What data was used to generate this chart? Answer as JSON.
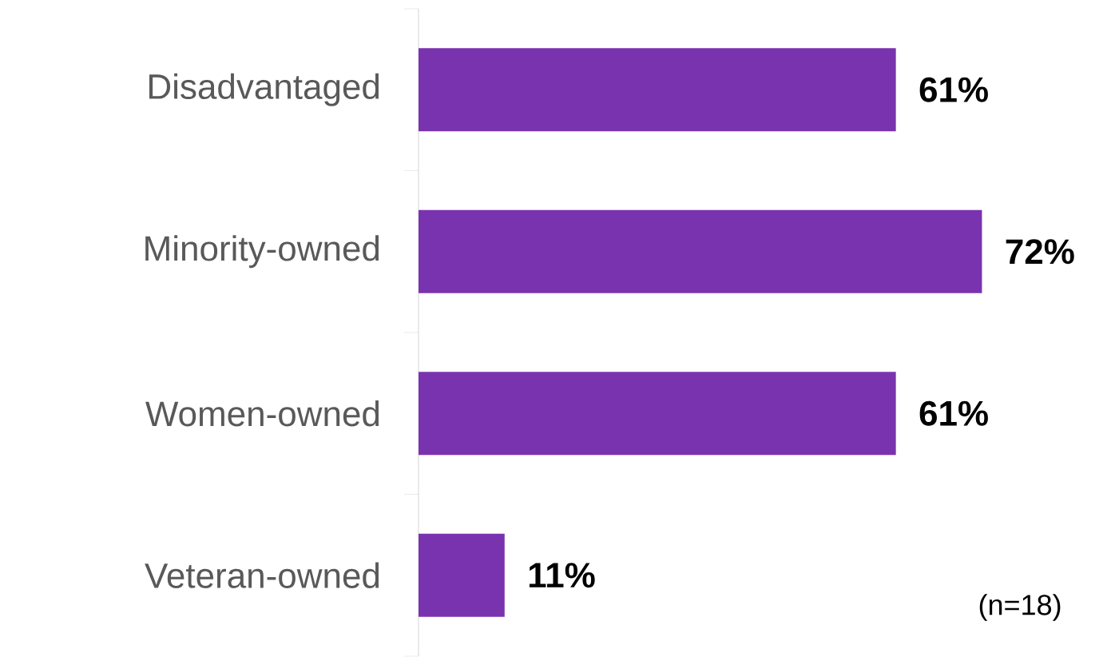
{
  "chart_data": {
    "type": "bar",
    "orientation": "horizontal",
    "categories": [
      "Disadvantaged",
      "Minority-owned",
      "Women-owned",
      "Veteran-owned"
    ],
    "values": [
      61,
      72,
      61,
      11
    ],
    "value_labels": [
      "61%",
      "72%",
      "61%",
      "11%"
    ],
    "color": "#7A33AF",
    "annotations": [
      "(n=18)"
    ]
  }
}
